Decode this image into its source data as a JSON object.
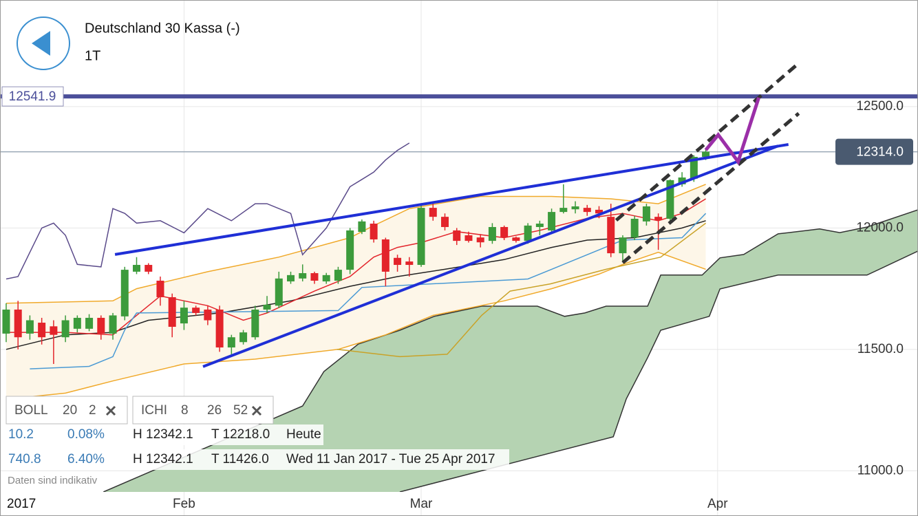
{
  "chart_data": {
    "type": "candlestick",
    "title": "Deutschland 30 Kassa (-)",
    "subtitle": "1T",
    "xlim": [
      -0.52,
      76.9
    ],
    "ylim": [
      10913,
      12939
    ],
    "yticks": [
      {
        "value": 11000,
        "label": "11000.0"
      },
      {
        "value": 11500,
        "label": "11500.0"
      },
      {
        "value": 12000,
        "label": "12000.0"
      },
      {
        "value": 12500,
        "label": "12500.0"
      }
    ],
    "xticks": [
      {
        "value": 15,
        "label": "Feb"
      },
      {
        "value": 35,
        "label": "Mar"
      },
      {
        "value": 60,
        "label": "Apr"
      }
    ],
    "year_label": "2017",
    "grid": true,
    "up_color": "#3c9b3c",
    "down_color": "#e3242b",
    "open": [
      11565,
      11664,
      11565,
      11610,
      11595,
      11550,
      11585,
      11585,
      11630,
      11565,
      11636,
      11820,
      11848,
      11783,
      11715,
      11607,
      11672,
      11664,
      11664,
      11508,
      11530,
      11550,
      11664,
      11680,
      11780,
      11792,
      11814,
      11780,
      11783,
      11828,
      11984,
      12018,
      11953,
      11877,
      11862,
      11848,
      12083,
      12046,
      11990,
      11970,
      11961,
      11947,
      12004,
      11961,
      11947,
      12004,
      11990,
      12066,
      12077,
      12083,
      12075,
      12046,
      11896,
      11961,
      12027,
      12046,
      12038,
      12180,
      12203,
      12293
    ],
    "high": [
      11690,
      11700,
      11640,
      11630,
      11620,
      11640,
      11640,
      11645,
      11640,
      11650,
      11840,
      11880,
      11855,
      11800,
      11730,
      11700,
      11680,
      11680,
      11680,
      11560,
      11580,
      11680,
      11720,
      11820,
      11820,
      11850,
      11820,
      11815,
      11840,
      12000,
      12035,
      12030,
      11960,
      11890,
      11880,
      12100,
      12100,
      12060,
      12000,
      11985,
      11975,
      12020,
      12010,
      11965,
      12020,
      12030,
      12080,
      12180,
      12110,
      12095,
      12090,
      12100,
      11970,
      12050,
      12100,
      12060,
      12200,
      12230,
      12300,
      12330
    ],
    "low": [
      11530,
      11500,
      11540,
      11520,
      11440,
      11530,
      11570,
      11575,
      11540,
      11540,
      11620,
      11810,
      11810,
      11680,
      11550,
      11580,
      11640,
      11600,
      11490,
      11480,
      11520,
      11540,
      11650,
      11670,
      11770,
      11780,
      11770,
      11770,
      11770,
      11810,
      11975,
      11940,
      11760,
      11820,
      11800,
      11840,
      12030,
      11990,
      11930,
      11940,
      11920,
      11935,
      11950,
      11940,
      11935,
      11970,
      11980,
      12060,
      12060,
      12050,
      12040,
      11880,
      11860,
      11950,
      12010,
      11910,
      12030,
      12170,
      12190,
      12280
    ],
    "close": [
      11664,
      11550,
      11620,
      11550,
      11560,
      11620,
      11630,
      11630,
      11565,
      11640,
      11828,
      11848,
      11820,
      11715,
      11593,
      11672,
      11650,
      11620,
      11508,
      11550,
      11570,
      11664,
      11684,
      11792,
      11806,
      11814,
      11783,
      11806,
      11828,
      11990,
      12027,
      11953,
      11820,
      11848,
      11848,
      12083,
      12046,
      12004,
      11947,
      11947,
      11941,
      12004,
      11961,
      11947,
      12010,
      12018,
      12066,
      12083,
      12089,
      12066,
      12060,
      11896,
      11961,
      12038,
      12089,
      12032,
      12197,
      12208,
      12293,
      12314
    ],
    "lines": [
      {
        "name": "BOLL upper",
        "color": "#f0a92a",
        "width": 1.5,
        "x": [
          0,
          9,
          11,
          17,
          23,
          29,
          31,
          34,
          37,
          40,
          46,
          51,
          55,
          59
        ],
        "values": [
          11690,
          11700,
          11750,
          11820,
          11880,
          11960,
          12010,
          12080,
          12105,
          12130,
          12130,
          12120,
          12100,
          12180
        ]
      },
      {
        "name": "BOLL middle",
        "color": "#222222",
        "width": 1.5,
        "x": [
          0,
          5,
          9,
          12,
          18,
          24,
          29,
          33,
          37,
          42,
          46,
          49,
          53,
          57,
          59
        ],
        "values": [
          11500,
          11560,
          11570,
          11620,
          11650,
          11700,
          11760,
          11800,
          11830,
          11870,
          11920,
          11950,
          11960,
          12000,
          12030
        ]
      },
      {
        "name": "BOLL lower",
        "color": "#f0a92a",
        "width": 1.5,
        "x": [
          0,
          5,
          9,
          15,
          21,
          28,
          32,
          36,
          42,
          46,
          50,
          52,
          55,
          59
        ],
        "values": [
          11295,
          11320,
          11370,
          11440,
          11460,
          11500,
          11560,
          11640,
          11700,
          11750,
          11810,
          11850,
          11900,
          11830
        ]
      },
      {
        "name": "gold",
        "color": "#c9a227",
        "width": 1.5,
        "x": [
          27.9,
          33.2,
          37.2,
          40.1,
          42.5,
          45.9,
          50.6,
          55.2,
          59
        ],
        "values": [
          11500,
          11470,
          11480,
          11640,
          11740,
          11770,
          11830,
          11880,
          12020
        ]
      },
      {
        "name": "tenkan",
        "color": "#e3242b",
        "width": 1.5,
        "x": [
          0,
          5,
          9,
          11,
          13,
          17,
          20,
          22,
          26,
          29,
          31,
          33,
          35,
          38,
          42,
          45,
          49,
          52,
          55,
          57,
          59
        ],
        "values": [
          11570,
          11570,
          11560,
          11640,
          11720,
          11680,
          11620,
          11650,
          11740,
          11800,
          11880,
          11920,
          11940,
          11985,
          11960,
          11990,
          12040,
          12060,
          12030,
          12060,
          12120
        ]
      },
      {
        "name": "kijun",
        "color": "#4a9ad4",
        "width": 1.5,
        "x": [
          2,
          7,
          9,
          10,
          11,
          28,
          30,
          44,
          46,
          52,
          57,
          59
        ],
        "values": [
          11420,
          11430,
          11470,
          11580,
          11650,
          11660,
          11755,
          11790,
          11830,
          11950,
          11960,
          12060
        ]
      },
      {
        "name": "chikou",
        "color": "#5a4a8a",
        "width": 1.5,
        "x": [
          0,
          1,
          2,
          3,
          4,
          5,
          6,
          8,
          9,
          10,
          11,
          13,
          15,
          17,
          19,
          21,
          22,
          24,
          25,
          27,
          29,
          30,
          31,
          32,
          33,
          34
        ],
        "values": [
          11790,
          11800,
          11900,
          12000,
          12020,
          11970,
          11850,
          11840,
          12080,
          12060,
          12020,
          12030,
          11980,
          12080,
          12030,
          12100,
          12100,
          12060,
          11890,
          12000,
          12170,
          12200,
          12230,
          12280,
          12320,
          12350
        ]
      }
    ],
    "cloud": {
      "color": "#b5d3b2",
      "span_a": {
        "color": "#333333",
        "x": [
          8.2,
          25.0,
          26.8,
          29.7,
          33.2,
          36.1,
          40.1,
          44.8,
          47.1,
          48.8,
          50.6,
          54.1,
          55.2,
          58.7,
          60.2,
          62.2,
          65.1,
          68.6,
          70.3,
          72.6,
          76.9
        ],
        "values": [
          10913,
          11267,
          11409,
          11522,
          11579,
          11636,
          11678,
          11678,
          11636,
          11650,
          11678,
          11678,
          11806,
          11806,
          11877,
          11891,
          11976,
          11996,
          11981,
          12004,
          12075
        ]
      },
      "span_b": {
        "color": "#333333",
        "x": [
          33.2,
          51.2,
          52.3,
          54.1,
          55.2,
          59.3,
          60.2,
          65.1,
          72.6,
          76.9
        ],
        "values": [
          10913,
          11140,
          11296,
          11466,
          11579,
          11636,
          11749,
          11806,
          11806,
          11905
        ]
      }
    },
    "drawings": [
      {
        "color": "#1f2fd6",
        "width": 4,
        "dash": false,
        "x": [
          9.18,
          65.97
        ],
        "values": [
          11891,
          12344
        ]
      },
      {
        "color": "#1f2fd6",
        "width": 4,
        "dash": false,
        "x": [
          16.6,
          65.1
        ],
        "values": [
          11429,
          12338
        ]
      },
      {
        "color": "#333333",
        "width": 5,
        "dash": true,
        "x": [
          51.45,
          66.84
        ],
        "values": [
          12032,
          12679
        ]
      },
      {
        "color": "#333333",
        "width": 5,
        "dash": true,
        "x": [
          52.0,
          66.84
        ],
        "values": [
          11857,
          12472
        ]
      },
      {
        "color": "#9b2fa8",
        "width": 5,
        "dash": false,
        "x": [
          59.0,
          60.05,
          61.73,
          63.47
        ],
        "values": [
          12321,
          12384,
          12273,
          12537
        ]
      }
    ],
    "levels": [
      {
        "value": 12541.9,
        "color": "#4b4f9a"
      },
      {
        "value": {
          "value": 12314,
          "label": "12314.0"
        },
        "color": "#9aa8b5"
      }
    ],
    "indicators": [
      {
        "name": "BOLL",
        "params": [
          20,
          2
        ]
      },
      {
        "name": "ICHI",
        "params": [
          8,
          26,
          52
        ]
      }
    ],
    "info_rows": [
      [
        "10.2",
        "0.08%",
        "H 12342.1",
        "T 12218.0",
        "Heute"
      ],
      [
        "740.8",
        "6.40%",
        "H 12342.1",
        "T 11426.0",
        "Wed 11 Jan 2017 - Tue 25 Apr 2017"
      ]
    ],
    "disclaimer": "Daten sind indikativ"
  }
}
